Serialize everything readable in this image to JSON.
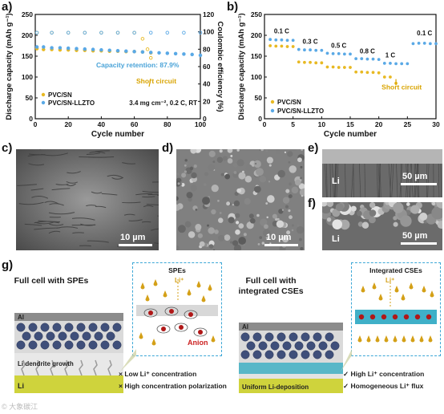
{
  "panels": {
    "a": "a)",
    "b": "b)",
    "c": "c)",
    "d": "d)",
    "e": "e)",
    "f": "f)",
    "g": "g)"
  },
  "chart_a": {
    "type": "scatter",
    "xlabel": "Cycle number",
    "ylabel_left": "Discharge capacity (mAh g⁻¹)",
    "ylabel_right": "Coulombic efficiency (%)",
    "xlim": [
      0,
      100
    ],
    "ylim_left": [
      0,
      250
    ],
    "ylim_right": [
      0,
      120
    ],
    "xticks": [
      "0",
      "20",
      "40",
      "60",
      "80",
      "100"
    ],
    "yticks_left": [
      "0",
      "50",
      "100",
      "150",
      "200",
      "250"
    ],
    "yticks_right": [
      "0",
      "20",
      "40",
      "60",
      "80",
      "100",
      "120"
    ],
    "legend": [
      "PVC/SN",
      "PVC/SN-LLZTO"
    ],
    "colors": {
      "pvc_sn": "#e8b923",
      "llzto": "#5aa9e6"
    },
    "annotation_retention": "Capacity retention: 87.9%",
    "annotation_short": "Short circuit",
    "condition": "3.4 mg cm⁻², 0.2 C, RT",
    "series": [
      {
        "name": "PVC/SN",
        "axis": "left",
        "x": [
          1,
          5,
          10,
          15,
          20,
          25,
          30,
          35,
          40,
          45,
          50,
          55,
          60,
          65,
          70
        ],
        "values": [
          168,
          166,
          166,
          165,
          165,
          164,
          164,
          163,
          163,
          162,
          162,
          161,
          161,
          160,
          158
        ]
      },
      {
        "name": "PVC/SN-LLZTO",
        "axis": "left",
        "x": [
          1,
          5,
          10,
          15,
          20,
          25,
          30,
          35,
          40,
          45,
          50,
          55,
          60,
          65,
          70,
          75,
          80,
          85,
          90,
          95,
          100
        ],
        "values": [
          172,
          172,
          170,
          170,
          169,
          168,
          167,
          166,
          165,
          164,
          163,
          162,
          161,
          160,
          159,
          158,
          157,
          156,
          155,
          154,
          152
        ]
      },
      {
        "name": "PVC/SN CE",
        "axis": "right",
        "x": [
          1,
          10,
          20,
          30,
          40,
          50,
          60,
          65,
          68,
          70
        ],
        "values": [
          99,
          99,
          99,
          99,
          99,
          99,
          99,
          92,
          80,
          70
        ]
      },
      {
        "name": "PVC/SN-LLZTO CE",
        "axis": "right",
        "x": [
          1,
          10,
          20,
          30,
          40,
          50,
          60,
          70,
          80,
          90,
          100
        ],
        "values": [
          99,
          99,
          99,
          99,
          99,
          99,
          99,
          99,
          99,
          99,
          99
        ]
      }
    ]
  },
  "chart_b": {
    "type": "scatter",
    "xlabel": "Cycle number",
    "ylabel": "Discharge capacity (mAh g⁻¹)",
    "xlim": [
      0,
      30
    ],
    "ylim": [
      0,
      250
    ],
    "xticks": [
      "0",
      "5",
      "10",
      "15",
      "20",
      "25",
      "30"
    ],
    "yticks": [
      "0",
      "50",
      "100",
      "150",
      "200",
      "250"
    ],
    "legend": [
      "PVC/SN",
      "PVC/SN-LLZTO"
    ],
    "rate_labels": [
      "0.1 C",
      "0.3 C",
      "0.5 C",
      "0.8 C",
      "1 C",
      "0.1 C"
    ],
    "annotation_short": "Short circuit",
    "series": [
      {
        "name": "PVC/SN",
        "x": [
          1,
          2,
          3,
          4,
          5,
          6,
          7,
          8,
          9,
          10,
          11,
          12,
          13,
          14,
          15,
          16,
          17,
          18,
          19,
          20,
          21,
          22,
          23
        ],
        "values": [
          175,
          174,
          174,
          173,
          173,
          136,
          135,
          135,
          134,
          134,
          124,
          124,
          123,
          123,
          123,
          112,
          112,
          111,
          111,
          110,
          100,
          100,
          85
        ]
      },
      {
        "name": "PVC/SN-LLZTO",
        "x": [
          1,
          2,
          3,
          4,
          5,
          6,
          7,
          8,
          9,
          10,
          11,
          12,
          13,
          14,
          15,
          16,
          17,
          18,
          19,
          20,
          21,
          22,
          23,
          24,
          25,
          26,
          27,
          28,
          29,
          30
        ],
        "values": [
          190,
          189,
          189,
          188,
          188,
          166,
          165,
          165,
          164,
          164,
          157,
          156,
          156,
          155,
          155,
          144,
          144,
          143,
          143,
          142,
          133,
          133,
          132,
          132,
          132,
          180,
          181,
          181,
          180,
          180
        ]
      }
    ]
  },
  "sem": {
    "c_scale": "10 µm",
    "d_scale": "10 µm",
    "e_scale": "50 µm",
    "f_scale": "50 µm",
    "e_label": "Li",
    "f_label": "Li"
  },
  "schematic": {
    "left_title": "Full cell with SPEs",
    "right_title": "Full cell with integrated CSEs",
    "left_box_title": "SPEs",
    "right_box_title": "Integrated CSEs",
    "li_ion": "Li⁺",
    "anion": "Anion",
    "al": "Al",
    "li": "Li",
    "dendrite": "Li dendrite growth",
    "uniform": "Uniform Li-deposition",
    "left_bullets": [
      "× Low Li⁺ concentration",
      "× High concentration polarization"
    ],
    "right_bullets": [
      "✓ High Li⁺ concentration",
      "✓ Homogeneous Li⁺ flux"
    ]
  },
  "watermark": "© 大象碳江"
}
